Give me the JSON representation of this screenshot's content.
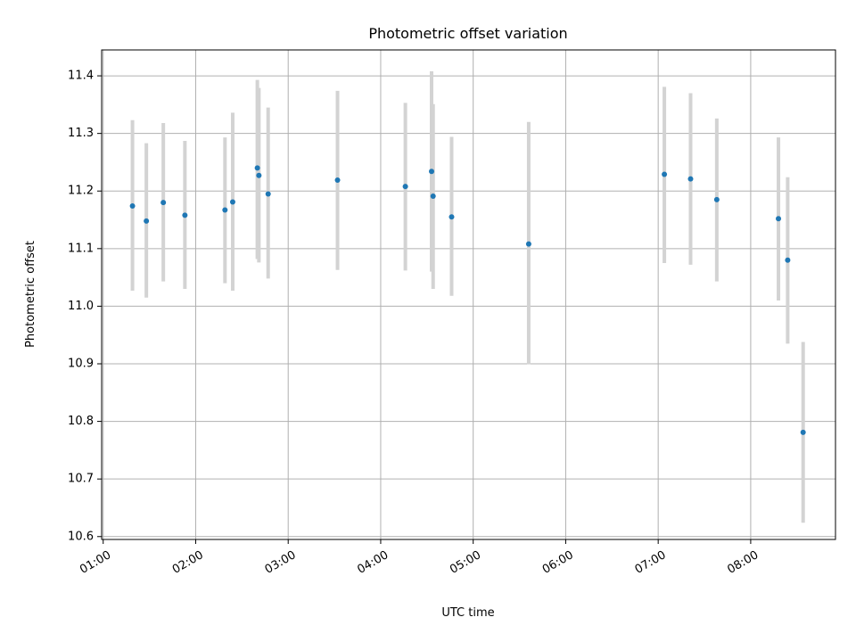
{
  "chart_data": {
    "type": "scatter",
    "title": "Photometric offset variation",
    "xlabel": "UTC time",
    "ylabel": "Photometric offset",
    "x_ticks": [
      "01:00",
      "02:00",
      "03:00",
      "04:00",
      "05:00",
      "06:00",
      "07:00",
      "08:00"
    ],
    "y_ticks": [
      "10.6",
      "10.7",
      "10.8",
      "10.9",
      "11.0",
      "11.1",
      "11.2",
      "11.3",
      "11.4"
    ],
    "xlim": [
      "00:59",
      "08:55"
    ],
    "ylim": [
      10.595,
      11.445
    ],
    "grid": true,
    "marker_color": "#1f77b4",
    "errorbar_color": "#d3d3d3",
    "points": [
      {
        "t": "01:19",
        "y": 11.174,
        "lo": 11.027,
        "hi": 11.323
      },
      {
        "t": "01:28",
        "y": 11.148,
        "lo": 11.015,
        "hi": 11.283
      },
      {
        "t": "01:39",
        "y": 11.18,
        "lo": 11.043,
        "hi": 11.318
      },
      {
        "t": "01:53",
        "y": 11.158,
        "lo": 11.03,
        "hi": 11.287
      },
      {
        "t": "02:19",
        "y": 11.167,
        "lo": 11.04,
        "hi": 11.293
      },
      {
        "t": "02:24",
        "y": 11.181,
        "lo": 11.027,
        "hi": 11.336
      },
      {
        "t": "02:40",
        "y": 11.24,
        "lo": 11.082,
        "hi": 11.393
      },
      {
        "t": "02:41",
        "y": 11.227,
        "lo": 11.076,
        "hi": 11.379
      },
      {
        "t": "02:47",
        "y": 11.195,
        "lo": 11.048,
        "hi": 11.345
      },
      {
        "t": "03:32",
        "y": 11.219,
        "lo": 11.063,
        "hi": 11.374
      },
      {
        "t": "04:16",
        "y": 11.208,
        "lo": 11.062,
        "hi": 11.353
      },
      {
        "t": "04:33",
        "y": 11.234,
        "lo": 11.06,
        "hi": 11.408
      },
      {
        "t": "04:34",
        "y": 11.191,
        "lo": 11.03,
        "hi": 11.351
      },
      {
        "t": "04:46",
        "y": 11.155,
        "lo": 11.018,
        "hi": 11.294
      },
      {
        "t": "05:36",
        "y": 11.108,
        "lo": 10.899,
        "hi": 11.32
      },
      {
        "t": "07:04",
        "y": 11.229,
        "lo": 11.075,
        "hi": 11.381
      },
      {
        "t": "07:21",
        "y": 11.221,
        "lo": 11.072,
        "hi": 11.37
      },
      {
        "t": "07:38",
        "y": 11.185,
        "lo": 11.043,
        "hi": 11.326
      },
      {
        "t": "08:18",
        "y": 11.152,
        "lo": 11.01,
        "hi": 11.293
      },
      {
        "t": "08:24",
        "y": 11.08,
        "lo": 10.935,
        "hi": 11.224
      },
      {
        "t": "08:34",
        "y": 10.781,
        "lo": 10.624,
        "hi": 10.938
      }
    ]
  }
}
